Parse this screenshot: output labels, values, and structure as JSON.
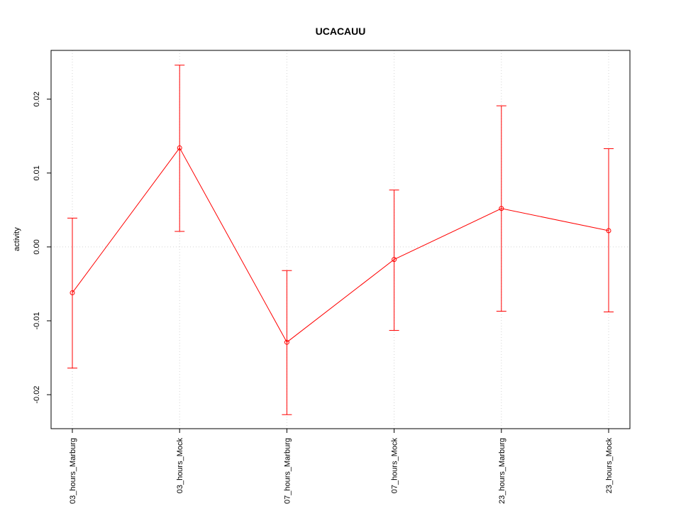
{
  "chart_data": {
    "type": "line",
    "title": "UCACAUU",
    "xlabel": "",
    "ylabel": "activity",
    "categories": [
      "03_hours_Marburg",
      "03_hours_Mock",
      "07_hours_Marburg",
      "07_hours_Mock",
      "23_hours_Marburg",
      "23_hours_Mock"
    ],
    "series": [
      {
        "values": [
          -0.0062,
          0.0134,
          -0.0129,
          -0.0017,
          0.0052,
          0.0022
        ],
        "err_upper": [
          0.0039,
          0.0246,
          -0.0032,
          0.0077,
          0.0191,
          0.0133
        ],
        "err_lower": [
          -0.0164,
          0.0021,
          -0.0227,
          -0.0113,
          -0.0087,
          -0.0088
        ],
        "color": "#ff0000"
      }
    ],
    "yticks": [
      "-0.02",
      "-0.01",
      "0.00",
      "0.01",
      "0.02"
    ],
    "ylim": [
      -0.0246,
      0.0266
    ],
    "grid": true,
    "grid_color": "#d3d3d3",
    "line_color": "#ff0000"
  }
}
